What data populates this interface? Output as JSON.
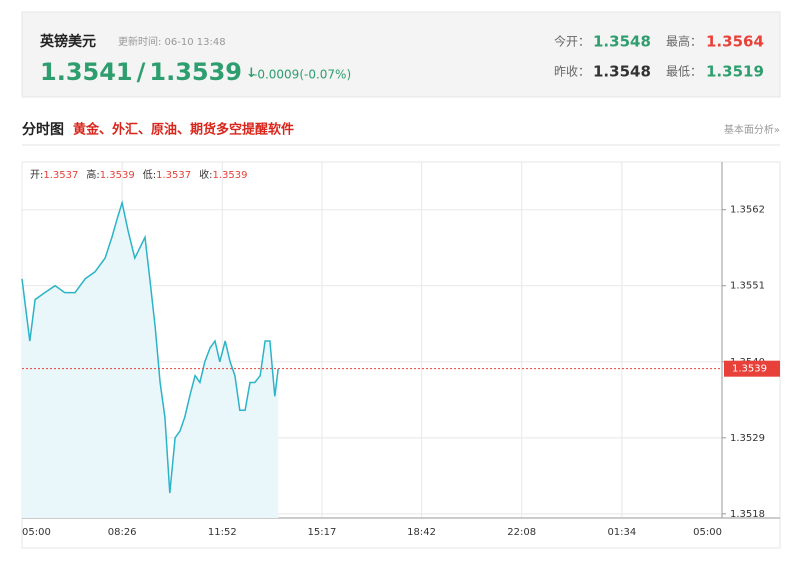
{
  "header": {
    "name": "英镑美元",
    "update_label": "更新时间: 06-10 13:48",
    "bid": "1.3541",
    "sep": "/",
    "ask": "1.3539",
    "arrow": "↓",
    "change": "-0.0009(-0.07%)",
    "open_label": "今开：",
    "open": "1.3548",
    "high_label": "最高：",
    "high": "1.3564",
    "prev_label": "昨收：",
    "prev": "1.3548",
    "low_label": "最低：",
    "low": "1.3519"
  },
  "section": {
    "title": "分时图",
    "subtitle": "黄金、外汇、原油、期货多空提醒软件",
    "link": "基本面分析»"
  },
  "chart_data": {
    "type": "line",
    "color": "#2bb3c8",
    "grid": true,
    "summary": [
      {
        "label": "开:",
        "value": 1.3537
      },
      {
        "label": "高:",
        "value": 1.3539
      },
      {
        "label": "低:",
        "value": 1.3537
      },
      {
        "label": "收:",
        "value": 1.3539
      }
    ],
    "x": [
      0,
      16,
      27,
      47,
      68,
      88,
      109,
      130,
      150,
      171,
      185,
      197,
      206,
      218,
      232,
      253,
      263,
      274,
      284,
      294,
      304,
      315,
      325,
      335,
      345,
      356,
      366,
      376,
      387,
      397,
      407,
      418,
      428,
      438,
      448,
      459,
      469,
      479,
      490,
      500,
      510,
      520,
      527
    ],
    "values": [
      1.3552,
      1.3543,
      1.3549,
      1.355,
      1.3551,
      1.355,
      1.355,
      1.3552,
      1.3553,
      1.3555,
      1.3558,
      1.3561,
      1.3563,
      1.3559,
      1.3555,
      1.3558,
      1.3552,
      1.3545,
      1.3537,
      1.3532,
      1.3521,
      1.3529,
      1.353,
      1.3532,
      1.3535,
      1.3538,
      1.3537,
      1.354,
      1.3542,
      1.3543,
      1.354,
      1.3543,
      1.354,
      1.3538,
      1.3533,
      1.3533,
      1.3537,
      1.3537,
      1.3538,
      1.3543,
      1.3543,
      1.3535,
      1.3539
    ],
    "xlim": [
      0,
      1440
    ],
    "xticks": [
      {
        "value": 0,
        "label": "05:00"
      },
      {
        "value": 206,
        "label": "08:26"
      },
      {
        "value": 412,
        "label": "11:52"
      },
      {
        "value": 617,
        "label": "15:17"
      },
      {
        "value": 822,
        "label": "18:42"
      },
      {
        "value": 1028,
        "label": "22:08"
      },
      {
        "value": 1234,
        "label": "01:34"
      },
      {
        "value": 1440,
        "label": "05:00"
      }
    ],
    "ylim": [
      1.35174,
      1.35689
    ],
    "yticks": [
      1.3518,
      1.3529,
      {
        "value": 1.354,
        "label": "1.3540"
      },
      1.3551,
      1.3562
    ]
  }
}
